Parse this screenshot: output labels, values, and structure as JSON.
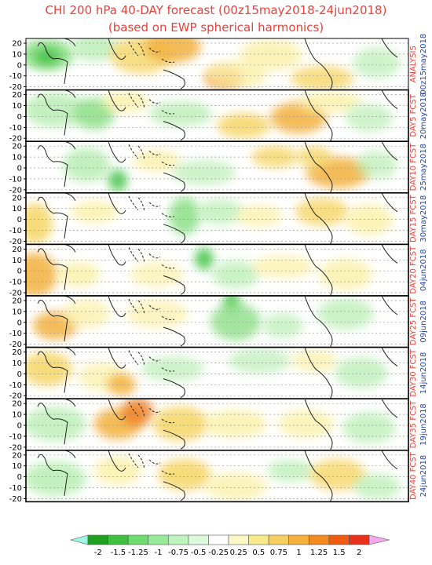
{
  "chart_data": {
    "type": "heatmap",
    "title": "CHI 200 hPa 40-DAY forecast (00z15may2018-24jun2018)",
    "subtitle": "(based on EWP spherical harmonics)",
    "y_ticks": [
      "20",
      "10",
      "0",
      "-10",
      "-20"
    ],
    "panels": [
      {
        "label": "ANALYSIS",
        "date": "00z15may2018",
        "label_color": "#e8413a",
        "date_color": "#1f3fbf"
      },
      {
        "label": "DAY5 FCST",
        "date": "20may2018",
        "label_color": "#e8413a",
        "date_color": "#1f3fbf"
      },
      {
        "label": "DAY10 FCST",
        "date": "25may2018",
        "label_color": "#e8413a",
        "date_color": "#1f3fbf"
      },
      {
        "label": "DAY15 FCST",
        "date": "30may2018",
        "label_color": "#e8413a",
        "date_color": "#1f3fbf"
      },
      {
        "label": "DAY20 FCST",
        "date": "04jun2018",
        "label_color": "#e8413a",
        "date_color": "#1f3fbf"
      },
      {
        "label": "DAY25 FCST",
        "date": "09jun2018",
        "label_color": "#e8413a",
        "date_color": "#1f3fbf"
      },
      {
        "label": "DAY30 FCST",
        "date": "14jun2018",
        "label_color": "#e8413a",
        "date_color": "#1f3fbf"
      },
      {
        "label": "DAY35 FCST",
        "date": "19jun2018",
        "label_color": "#e8413a",
        "date_color": "#1f3fbf"
      },
      {
        "label": "DAY40 FCST",
        "date": "24jun2018",
        "label_color": "#e8413a",
        "date_color": "#1f3fbf"
      }
    ],
    "colorbar": {
      "labels": [
        "-2",
        "-1.5",
        "-1.25",
        "-1",
        "-0.75",
        "-0.5",
        "-0.25",
        "0.25",
        "0.5",
        "0.75",
        "1",
        "1.25",
        "1.5",
        "2"
      ],
      "colors": [
        "#1fa01f",
        "#3fc03f",
        "#6fdc6f",
        "#98ea98",
        "#bdf3bd",
        "#dcf8dc",
        "#ffffff",
        "#fbf7c6",
        "#f8ea8a",
        "#f5d060",
        "#f4b03a",
        "#f28a1f",
        "#ee5a12",
        "#e8301a"
      ],
      "low_color": "#9df5e6",
      "high_color": "#f3a8ee"
    }
  }
}
